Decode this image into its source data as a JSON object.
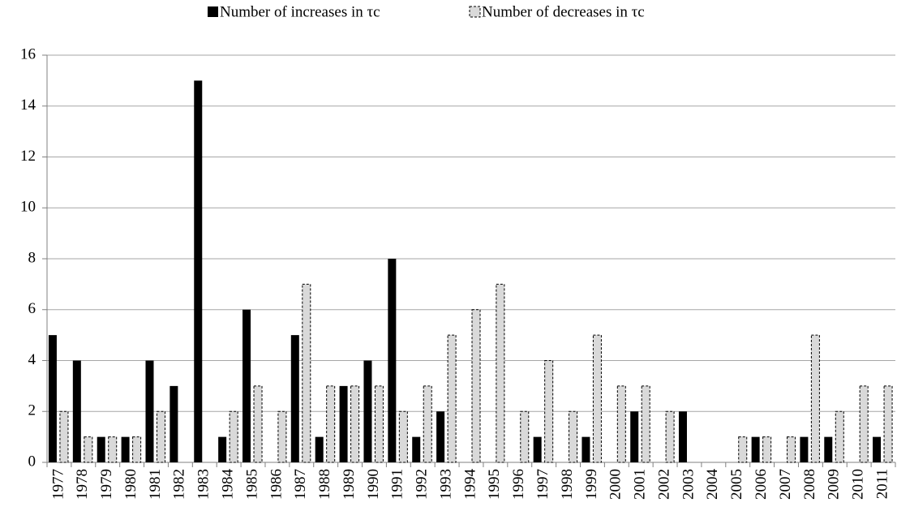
{
  "chart_data": {
    "type": "bar",
    "categories": [
      "1977",
      "1978",
      "1979",
      "1980",
      "1981",
      "1982",
      "1983",
      "1984",
      "1985",
      "1986",
      "1987",
      "1988",
      "1989",
      "1990",
      "1991",
      "1992",
      "1993",
      "1994",
      "1995",
      "1996",
      "1997",
      "1998",
      "1999",
      "2000",
      "2001",
      "2002",
      "2003",
      "2004",
      "2005",
      "2006",
      "2007",
      "2008",
      "2009",
      "2010",
      "2011"
    ],
    "series": [
      {
        "name": "Number of increases in τc",
        "color": "#000000",
        "values": [
          5,
          4,
          1,
          1,
          4,
          3,
          15,
          1,
          6,
          0,
          5,
          1,
          3,
          4,
          8,
          1,
          2,
          0,
          0,
          0,
          1,
          0,
          1,
          0,
          2,
          0,
          2,
          0,
          0,
          1,
          0,
          1,
          1,
          0,
          1
        ]
      },
      {
        "name": "Number of decreases in τc",
        "color": "#d9d9d9",
        "values": [
          2,
          1,
          1,
          1,
          2,
          0,
          0,
          2,
          3,
          2,
          7,
          3,
          3,
          3,
          2,
          3,
          5,
          6,
          7,
          2,
          4,
          2,
          5,
          3,
          3,
          2,
          0,
          0,
          1,
          1,
          1,
          5,
          2,
          3,
          3
        ]
      }
    ],
    "ylim": [
      0,
      16
    ],
    "yticks": [
      0,
      2,
      4,
      6,
      8,
      10,
      12,
      14,
      16
    ],
    "grid": true,
    "legend": "top"
  }
}
